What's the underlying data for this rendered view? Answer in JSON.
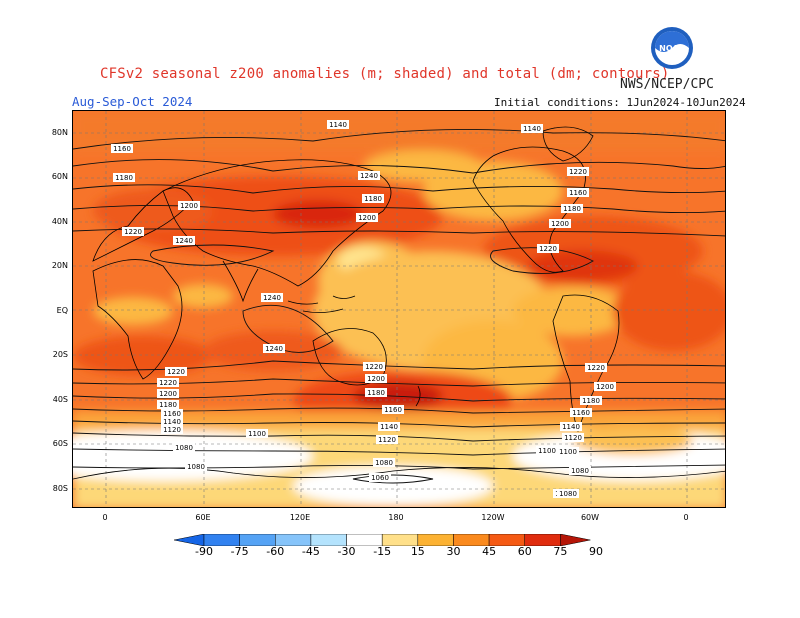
{
  "header": {
    "title": "CFSv2 seasonal z200 anomalies (m; shaded) and total (dm; contours)",
    "agency": "NWS/NCEP/CPC",
    "period": "Aug-Sep-Oct 2024",
    "initial_conditions": "Initial conditions: 1Jun2024-10Jun2024",
    "logo_text": "NOAA"
  },
  "map": {
    "lat_labels": [
      "80N",
      "60N",
      "40N",
      "20N",
      "EQ",
      "20S",
      "40S",
      "60S",
      "80S"
    ],
    "lon_labels": [
      "0",
      "60E",
      "120E",
      "180",
      "120W",
      "60W",
      "0"
    ],
    "contour_labels": [
      "1140",
      "1140",
      "1160",
      "1180",
      "1200",
      "1220",
      "1240",
      "1180",
      "1200",
      "1220",
      "1160",
      "1180",
      "1200",
      "1220",
      "1240",
      "1240",
      "1240",
      "1220",
      "1220",
      "1200",
      "1180",
      "1160",
      "1140",
      "1120",
      "1100",
      "1080",
      "1080",
      "1060",
      "1220",
      "1200",
      "1180",
      "1160",
      "1140",
      "1120",
      "1100",
      "1080",
      "1080",
      "1080",
      "1220",
      "1200",
      "1180",
      "1160",
      "1140",
      "1120",
      "1100",
      "1080"
    ]
  },
  "colorbar": {
    "colors": [
      "#1565e6",
      "#3282f0",
      "#55a3f5",
      "#86c4fa",
      "#b4e3fd",
      "#ffffff",
      "#ffe08a",
      "#fcb233",
      "#fa8a1e",
      "#f55a14",
      "#e02c0e",
      "#b51608"
    ],
    "labels": [
      "-90",
      "-75",
      "-60",
      "-45",
      "-30",
      "-15",
      "15",
      "30",
      "45",
      "60",
      "75",
      "90"
    ]
  }
}
